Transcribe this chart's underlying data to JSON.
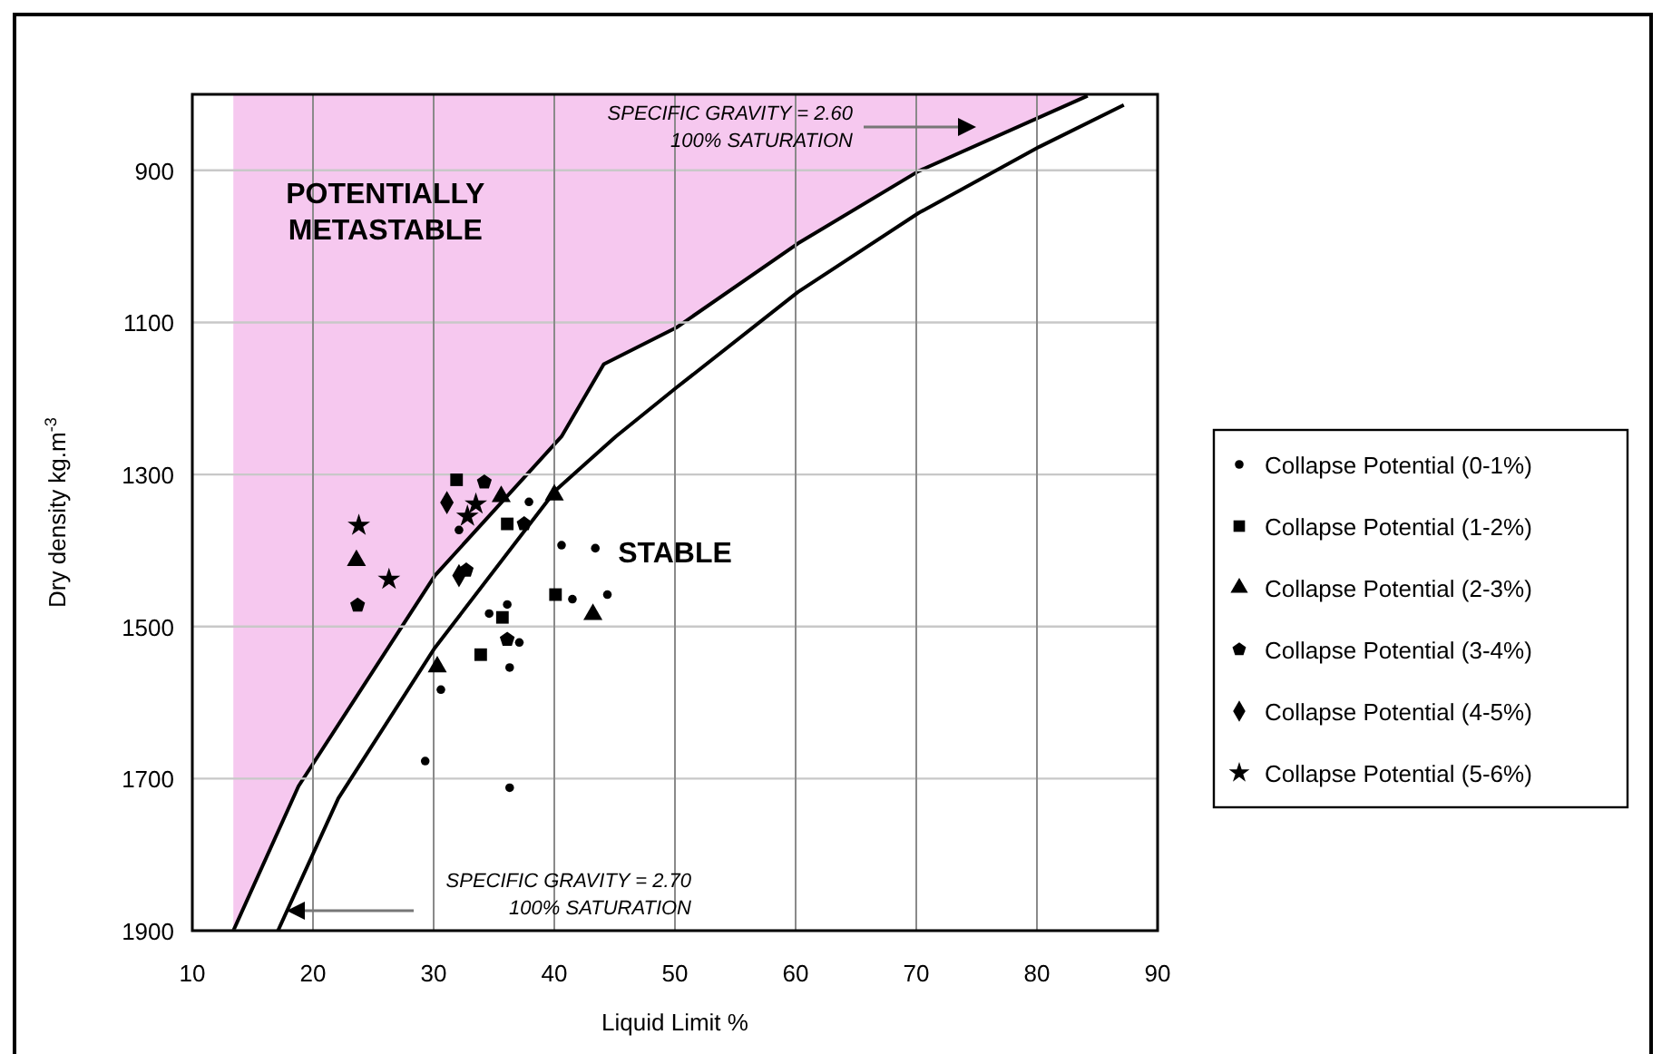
{
  "chart_data": {
    "type": "scatter",
    "xlabel": "Liquid Limit %",
    "ylabel": "Dry density kg.m$^{-3}$",
    "xlim": [
      10,
      90
    ],
    "xticks": [
      10,
      20,
      30,
      40,
      50,
      60,
      70,
      80,
      90
    ],
    "ylim": [
      1900,
      800
    ],
    "yticks": [
      900,
      1100,
      1300,
      1500,
      1700,
      1900
    ],
    "grid": true,
    "legend": "right",
    "series": [
      {
        "type": "area",
        "color": "#f6c8ef",
        "x": [
          13.4,
          18.8,
          30.1,
          40.6,
          44.1,
          50.1,
          60.2,
          70.2,
          84.2
        ],
        "values": [
          1900,
          1710,
          1433,
          1250,
          1155,
          1107,
          996,
          901,
          802
        ]
      },
      {
        "type": "line",
        "color": "#000000",
        "marker": "none",
        "line_style": "solid",
        "x": [
          17.1,
          22.1,
          30.1,
          40.1,
          45.1,
          50.1,
          60.2,
          70.2,
          80.2,
          87.2
        ],
        "values": [
          1900,
          1726,
          1528,
          1321,
          1250,
          1186,
          1060,
          956,
          869,
          814
        ]
      },
      {
        "name": "Collapse Potential (0-1%)",
        "color": "#000000",
        "marker": "circle",
        "x": [
          37.9,
          32.1,
          40.6,
          43.4,
          41.5,
          44.4,
          34.6,
          36.1,
          30.6,
          36.3,
          29.3,
          36.3,
          37.1
        ],
        "values": [
          1336,
          1373,
          1393,
          1397,
          1464,
          1458,
          1483,
          1471,
          1583,
          1554,
          1677,
          1712,
          1521
        ]
      },
      {
        "name": "Collapse Potential (1-2%)",
        "color": "#000000",
        "marker": "square",
        "x": [
          31.9,
          36.1,
          40.1,
          35.7,
          33.9
        ],
        "values": [
          1307,
          1365,
          1458,
          1488,
          1537
        ]
      },
      {
        "name": "Collapse Potential (2-3%)",
        "color": "#000000",
        "marker": "triangle",
        "x": [
          23.6,
          35.6,
          40.0,
          43.2,
          30.3
        ],
        "values": [
          1413,
          1329,
          1327,
          1484,
          1553
        ]
      },
      {
        "name": "Collapse Potential (3-4%)",
        "color": "#000000",
        "x": [
          23.7,
          34.2,
          36.1,
          32.7,
          37.5
        ],
        "values": [
          1472,
          1310,
          1517,
          1426,
          1365
        ]
      },
      {
        "name": "Collapse Potential (4-5%)",
        "color": "#000000",
        "marker": "diamond",
        "x": [
          31.1,
          32.1
        ],
        "values": [
          1337,
          1433
        ]
      },
      {
        "name": "Collapse Potential (5-6%)",
        "color": "#000000",
        "marker": "star",
        "x": [
          23.8,
          26.3,
          33.5,
          32.8
        ],
        "values": [
          1367,
          1438,
          1339,
          1355
        ]
      }
    ],
    "annotations": [
      "POTENTIALLY\nMETASTABLE",
      "STABLE",
      "SPECIFIC GRAVITY = 2.60\n100% SATURATION",
      "SPECIFIC GRAVITY = 2.70\n100% SATURATION"
    ]
  }
}
